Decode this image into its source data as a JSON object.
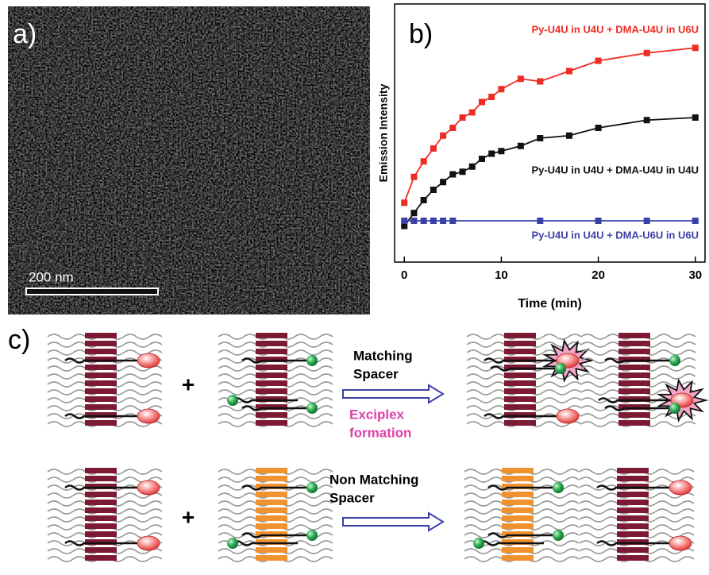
{
  "panels": {
    "a": {
      "label": "a)",
      "scale_bar": "200 nm"
    },
    "c": {
      "label": "c)",
      "plus": "+",
      "matching": [
        "Matching",
        "Spacer"
      ],
      "exciplex": [
        "Exciplex",
        "formation"
      ],
      "non_matching": [
        "Non Matching",
        "Spacer"
      ]
    }
  },
  "chart_data": {
    "type": "line",
    "panel_label": "b)",
    "xlabel": "Time (min)",
    "ylabel": "Emission Intensity",
    "xlim": [
      -1,
      31
    ],
    "ylim": [
      0,
      100
    ],
    "xticks": [
      0,
      10,
      20,
      30
    ],
    "series": [
      {
        "name": "Py-U4U in U4U + DMA-U4U in U6U",
        "color": "#ee2b24",
        "x": [
          0,
          1,
          2,
          3,
          4,
          5,
          6,
          7,
          8,
          9,
          10,
          12,
          14,
          17,
          20,
          25,
          30
        ],
        "values": [
          23,
          33,
          39,
          44,
          49,
          52,
          56,
          58,
          62,
          64,
          67,
          71,
          70,
          74,
          78,
          81,
          83
        ]
      },
      {
        "name": "Py-U4U in U4U + DMA-U4U in U4U",
        "color": "#111111",
        "x": [
          0,
          1,
          2,
          3,
          4,
          5,
          6,
          7,
          8,
          9,
          10,
          12,
          14,
          17,
          20,
          25,
          30
        ],
        "values": [
          14,
          19,
          24,
          28,
          31,
          34,
          35,
          37,
          40,
          42,
          43,
          45,
          48,
          49,
          52,
          55,
          56
        ]
      },
      {
        "name": "Py-U4U in U4U + DMA-U6U in U6U",
        "color": "#3b3fa8",
        "x": [
          0,
          1,
          2,
          3,
          4,
          5,
          14,
          20,
          25,
          30
        ],
        "values": [
          16,
          16,
          16,
          16,
          16,
          16,
          16,
          16,
          16,
          16
        ]
      }
    ]
  }
}
